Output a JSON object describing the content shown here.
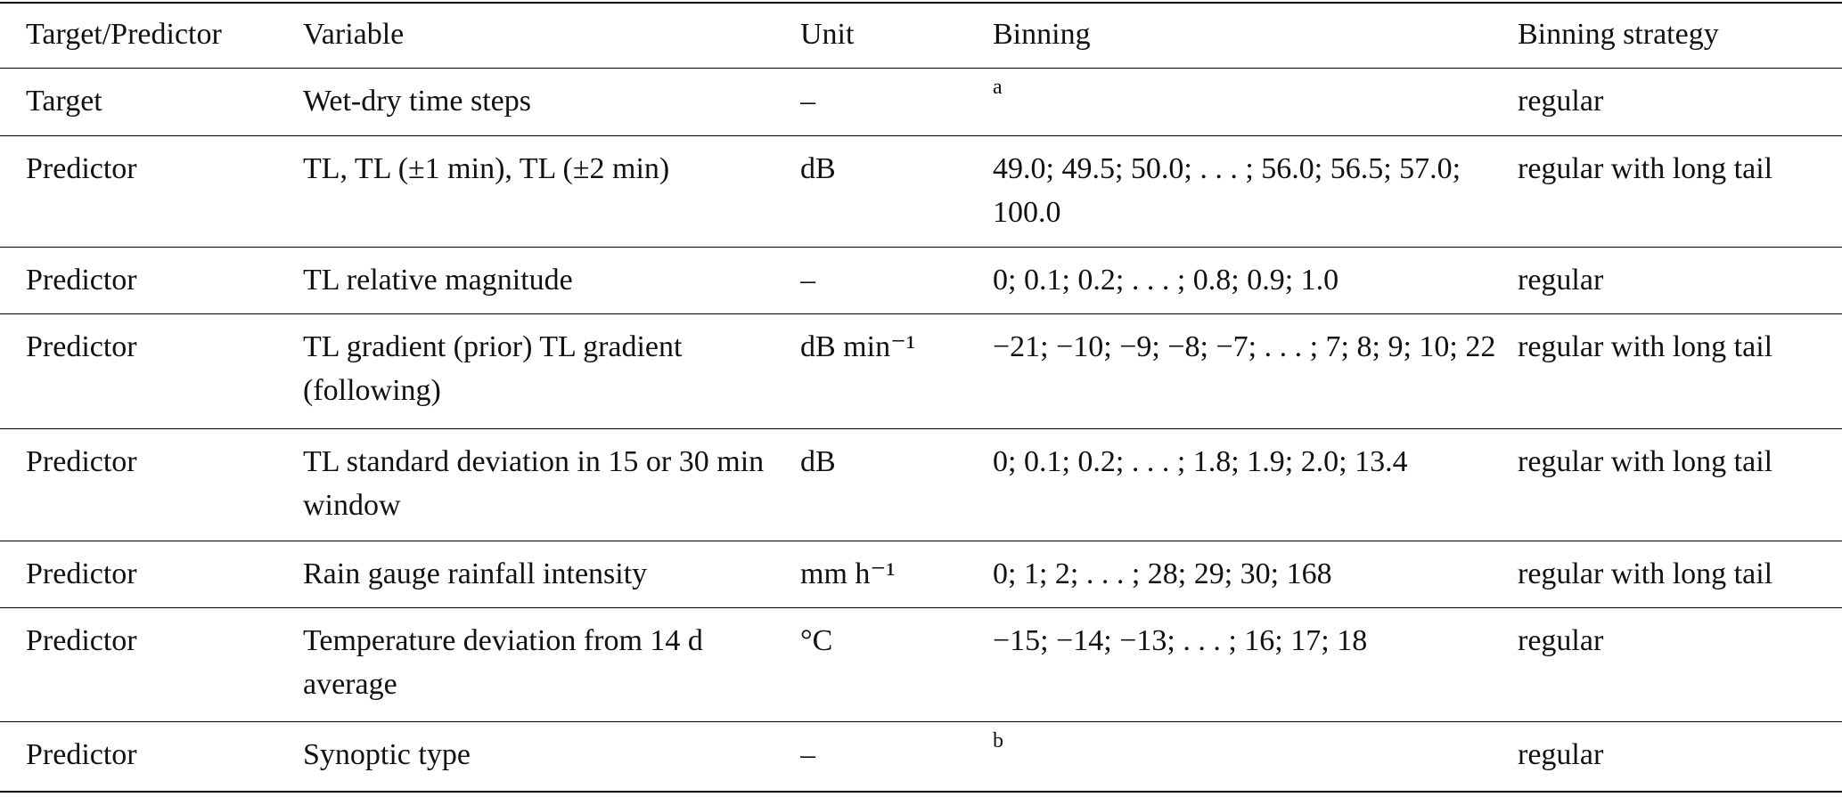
{
  "table": {
    "header": [
      "Target/Predictor",
      "Variable",
      "Unit",
      "Binning",
      "Binning strategy"
    ],
    "rows": [
      [
        "Target",
        "Wet-dry time steps",
        "–",
        "a",
        "regular"
      ],
      [
        "Predictor",
        "TL, TL (±1 min), TL (±2 min)",
        "dB",
        "49.0; 49.5; 50.0; . . . ; 56.0; 56.5; 57.0; 100.0",
        "regular with long tail"
      ],
      [
        "Predictor",
        "TL relative magnitude",
        "–",
        "0; 0.1; 0.2; . . . ; 0.8; 0.9; 1.0",
        "regular"
      ],
      [
        "Predictor",
        "TL gradient (prior) TL gradient (following)",
        "dB min⁻¹",
        "−21; −10; −9; −8; −7; . . . ; 7; 8; 9; 10; 22",
        "regular with long tail"
      ],
      [
        "Predictor",
        "TL standard deviation in 15 or 30 min window",
        "dB",
        "0; 0.1; 0.2; . . . ; 1.8; 1.9; 2.0; 13.4",
        "regular with long tail"
      ],
      [
        "Predictor",
        "Rain gauge rainfall intensity",
        "mm h⁻¹",
        "0; 1; 2; . . . ; 28; 29; 30; 168",
        "regular with long tail"
      ],
      [
        "Predictor",
        "Temperature deviation from 14 d average",
        "°C",
        "−15; −14; −13; . . . ; 16; 17; 18",
        "regular"
      ],
      [
        "Predictor",
        "Synoptic type",
        "–",
        "b",
        "regular"
      ]
    ],
    "footnote_cells": [
      [
        0,
        3
      ],
      [
        7,
        3
      ]
    ]
  }
}
